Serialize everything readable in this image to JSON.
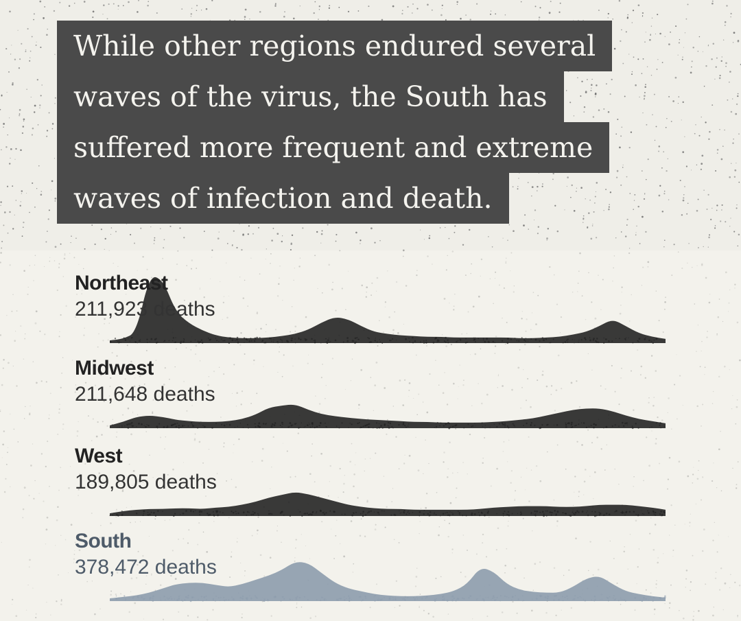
{
  "headline": {
    "lines": [
      "While other regions endured several",
      "waves of the virus, the South has",
      "suffered more frequent and extreme",
      "waves of infection and death."
    ]
  },
  "colors": {
    "background": "#f3f2ec",
    "headline_box": "#4a4a4a",
    "dark_series": "#1f1f1f",
    "south_series": "#8d9cad"
  },
  "chart_data": {
    "type": "area",
    "x_range": [
      0,
      100
    ],
    "series": [
      {
        "name": "Northeast",
        "deaths_label": "211,923 deaths",
        "values": [
          0,
          2,
          11,
          92,
          86,
          40,
          24,
          14,
          7,
          4,
          3,
          3,
          4,
          6,
          9,
          15,
          25,
          33,
          30,
          20,
          12,
          9,
          7,
          6,
          5,
          5,
          4,
          4,
          4,
          4,
          4,
          3,
          3,
          4,
          5,
          8,
          12,
          20,
          30,
          20,
          10,
          5,
          2
        ]
      },
      {
        "name": "Midwest",
        "deaths_label": "211,648 deaths",
        "values": [
          0,
          5,
          12,
          14,
          12,
          8,
          6,
          5,
          5,
          6,
          9,
          15,
          25,
          28,
          30,
          22,
          16,
          13,
          11,
          9,
          8,
          7,
          6,
          5,
          5,
          4,
          4,
          4,
          4,
          5,
          6,
          8,
          10,
          14,
          18,
          22,
          24,
          24,
          20,
          14,
          9,
          6,
          3
        ]
      },
      {
        "name": "West",
        "deaths_label": "189,805 deaths",
        "values": [
          0,
          3,
          5,
          6,
          6,
          7,
          7,
          6,
          8,
          9,
          12,
          16,
          22,
          26,
          30,
          27,
          22,
          17,
          12,
          9,
          7,
          6,
          6,
          5,
          5,
          5,
          5,
          5,
          6,
          8,
          9,
          10,
          10,
          10,
          9,
          9,
          10,
          12,
          12,
          12,
          10,
          8,
          5
        ]
      },
      {
        "name": "South",
        "deaths_label": "378,472 deaths",
        "values": [
          0,
          2,
          4,
          8,
          14,
          20,
          22,
          22,
          19,
          16,
          20,
          26,
          32,
          40,
          52,
          50,
          36,
          22,
          14,
          10,
          6,
          4,
          3,
          3,
          4,
          6,
          10,
          20,
          44,
          38,
          20,
          12,
          9,
          8,
          8,
          16,
          28,
          32,
          20,
          10,
          6,
          3,
          1
        ]
      }
    ]
  }
}
